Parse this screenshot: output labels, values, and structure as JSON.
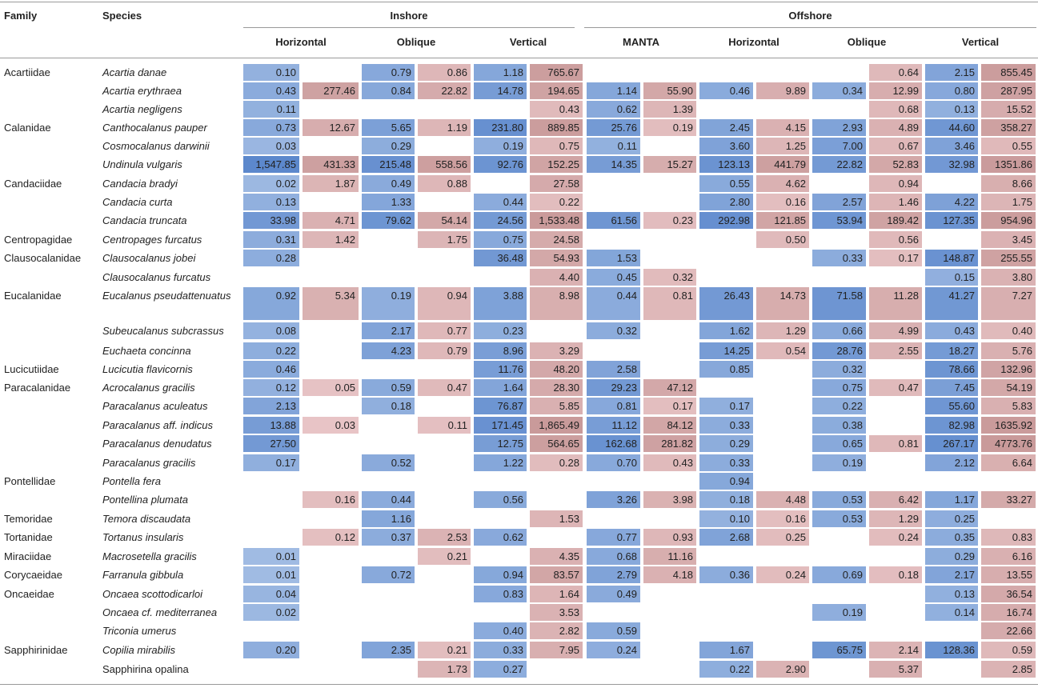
{
  "headers": {
    "family": "Family",
    "species": "Species",
    "inshore": "Inshore",
    "offshore": "Offshore",
    "sub": [
      "Horizontal",
      "Oblique",
      "Vertical",
      "MANTA",
      "Horizontal",
      "Oblique",
      "Vertical"
    ]
  },
  "colors": {
    "blue_max": "#5b87cc",
    "blue_min": "#c5d7ef",
    "red_max": "#c99a9a",
    "red_min": "#f3d4d6",
    "red_pink": "#f2a9b3"
  },
  "rows": [
    {
      "family": "Acartiidae",
      "species": "Acartia danae",
      "italic": true,
      "v": [
        "0.10",
        "",
        "0.79",
        "0.86",
        "1.18",
        "765.67",
        "",
        "",
        "",
        "",
        "",
        "0.64",
        "2.15",
        "855.45"
      ]
    },
    {
      "family": "",
      "species": "Acartia erythraea",
      "italic": true,
      "v": [
        "0.43",
        "277.46",
        "0.84",
        "22.82",
        "14.78",
        "194.65",
        "1.14",
        "55.90",
        "0.46",
        "9.89",
        "0.34",
        "12.99",
        "0.80",
        "287.95"
      ]
    },
    {
      "family": "",
      "species": "Acartia negligens",
      "italic": true,
      "v": [
        "0.11",
        "",
        "",
        "",
        "",
        "0.43",
        "0.62",
        "1.39",
        "",
        "",
        "",
        "0.68",
        "0.13",
        "15.52"
      ]
    },
    {
      "family": "Calanidae",
      "species": "Canthocalanus pauper",
      "italic": true,
      "v": [
        "0.73",
        "12.67",
        "5.65",
        "1.19",
        "231.80",
        "889.85",
        "25.76",
        "0.19",
        "2.45",
        "4.15",
        "2.93",
        "4.89",
        "44.60",
        "358.27"
      ]
    },
    {
      "family": "",
      "species": "Cosmocalanus darwinii",
      "italic": true,
      "v": [
        "0.03",
        "",
        "0.29",
        "",
        "0.19",
        "0.75",
        "0.11",
        "",
        "3.60",
        "1.25",
        "7.00",
        "0.67",
        "3.46",
        "0.55"
      ]
    },
    {
      "family": "",
      "species": "Undinula vulgaris",
      "italic": true,
      "v": [
        "1,547.85",
        "431.33",
        "215.48",
        "558.56",
        "92.76",
        "152.25",
        "14.35",
        "15.27",
        "123.13",
        "441.79",
        "22.82",
        "52.83",
        "32.98",
        "1351.86"
      ]
    },
    {
      "family": "Candaciidae",
      "species": "Candacia bradyi",
      "italic": true,
      "v": [
        "0.02",
        "1.87",
        "0.49",
        "0.88",
        "",
        "27.58",
        "",
        "",
        "0.55",
        "4.62",
        "",
        "0.94",
        "",
        "8.66"
      ]
    },
    {
      "family": "",
      "species": "Candacia curta",
      "italic": true,
      "v": [
        "0.13",
        "",
        "1.33",
        "",
        "0.44",
        "0.22",
        "",
        "",
        "2.80",
        "0.16",
        "2.57",
        "1.46",
        "4.22",
        "1.75"
      ]
    },
    {
      "family": "",
      "species": "Candacia truncata",
      "italic": true,
      "v": [
        "33.98",
        "4.71",
        "79.62",
        "54.14",
        "24.56",
        "1,533.48",
        "61.56",
        "0.23",
        "292.98",
        "121.85",
        "53.94",
        "189.42",
        "127.35",
        "954.96"
      ]
    },
    {
      "family": "Centropagidae",
      "species": "Centropages furcatus",
      "italic": true,
      "v": [
        "0.31",
        "1.42",
        "",
        "1.75",
        "0.75",
        "24.58",
        "",
        "",
        "",
        "0.50",
        "",
        "0.56",
        "",
        "3.45"
      ]
    },
    {
      "family": "Clausocalanidae",
      "species": "Clausocalanus jobei",
      "italic": true,
      "v": [
        "0.28",
        "",
        "",
        "",
        "36.48",
        "54.93",
        "1.53",
        "",
        "",
        "",
        "0.33",
        "0.17",
        "148.87",
        "255.55"
      ]
    },
    {
      "family": "",
      "species": "Clausocalanus furcatus",
      "italic": true,
      "v": [
        "",
        "",
        "",
        "",
        "",
        "4.40",
        "0.45",
        "0.32",
        "",
        "",
        "",
        "",
        "0.15",
        "3.80"
      ]
    },
    {
      "family": "Eucalanidae",
      "species": "Eucalanus pseudattenuatus",
      "italic": true,
      "tall": true,
      "v": [
        "0.92",
        "5.34",
        "0.19",
        "0.94",
        "3.88",
        "8.98",
        "0.44",
        "0.81",
        "26.43",
        "14.73",
        "71.58",
        "11.28",
        "41.27",
        "7.27"
      ]
    },
    {
      "family": "",
      "species": "Subeucalanus subcrassus",
      "italic": true,
      "v": [
        "0.08",
        "",
        "2.17",
        "0.77",
        "0.23",
        "",
        "0.32",
        "",
        "1.62",
        "1.29",
        "0.66",
        "4.99",
        "0.43",
        "0.40"
      ]
    },
    {
      "family": "",
      "species": "Euchaeta concinna",
      "italic": true,
      "v": [
        "0.22",
        "",
        "4.23",
        "0.79",
        "8.96",
        "3.29",
        "",
        "",
        "14.25",
        "0.54",
        "28.76",
        "2.55",
        "18.27",
        "5.76"
      ]
    },
    {
      "family": "Lucicutiidae",
      "species": "Lucicutia flavicornis",
      "italic": true,
      "v": [
        "0.46",
        "",
        "",
        "",
        "11.76",
        "48.20",
        "2.58",
        "",
        "0.85",
        "",
        "0.32",
        "",
        "78.66",
        "132.96"
      ]
    },
    {
      "family": "Paracalanidae",
      "species": "Acrocalanus gracilis",
      "italic": true,
      "v": [
        "0.12",
        "0.05",
        "0.59",
        "0.47",
        "1.64",
        "28.30",
        "29.23",
        "47.12",
        "",
        "",
        "0.75",
        "0.47",
        "7.45",
        "54.19"
      ]
    },
    {
      "family": "",
      "species": "Paracalanus aculeatus",
      "italic": true,
      "v": [
        "2.13",
        "",
        "0.18",
        "",
        "76.87",
        "5.85",
        "0.81",
        "0.17",
        "0.17",
        "",
        "0.22",
        "",
        "55.60",
        "5.83"
      ]
    },
    {
      "family": "",
      "species": "Paracalanus aff. indicus",
      "italic": true,
      "v": [
        "13.88",
        "0.03",
        "",
        "0.11",
        "171.45",
        "1,865.49",
        "11.12",
        "84.12",
        "0.33",
        "",
        "0.38",
        "",
        "82.98",
        "1635.92"
      ]
    },
    {
      "family": "",
      "species": "Paracalanus denudatus",
      "italic": true,
      "v": [
        "27.50",
        "",
        "",
        "",
        "12.75",
        "564.65",
        "162.68",
        "281.82",
        "0.29",
        "",
        "0.65",
        "0.81",
        "267.17",
        "4773.76"
      ]
    },
    {
      "family": "",
      "species": "Paracalanus gracilis",
      "italic": true,
      "v": [
        "0.17",
        "",
        "0.52",
        "",
        "1.22",
        "0.28",
        "0.70",
        "0.43",
        "0.33",
        "",
        "0.19",
        "",
        "2.12",
        "6.64"
      ]
    },
    {
      "family": "Pontellidae",
      "species": "Pontella fera",
      "italic": true,
      "v": [
        "",
        "",
        "",
        "",
        "",
        "",
        "",
        "",
        "0.94",
        "",
        "",
        "",
        "",
        ""
      ]
    },
    {
      "family": "",
      "species": "Pontellina plumata",
      "italic": true,
      "v": [
        "",
        "0.16",
        "0.44",
        "",
        "0.56",
        "",
        "3.26",
        "3.98",
        "0.18",
        "4.48",
        "0.53",
        "6.42",
        "1.17",
        "33.27"
      ]
    },
    {
      "family": "Temoridae",
      "species": "Temora discaudata",
      "italic": true,
      "v": [
        "",
        "",
        "1.16",
        "",
        "",
        "1.53",
        "",
        "",
        "0.10",
        "0.16",
        "0.53",
        "1.29",
        "0.25",
        ""
      ]
    },
    {
      "family": "Tortanidae",
      "species": "Tortanus insularis",
      "italic": true,
      "v": [
        "",
        "0.12",
        "0.37",
        "2.53",
        "0.62",
        "",
        "0.77",
        "0.93",
        "2.68",
        "0.25",
        "",
        "0.24",
        "0.35",
        "0.83"
      ]
    },
    {
      "family": "Miraciidae",
      "species": "Macrosetella gracilis",
      "italic": true,
      "v": [
        "0.01",
        "",
        "",
        "0.21",
        "",
        "4.35",
        "0.68",
        "11.16",
        "",
        "",
        "",
        "",
        "0.29",
        "6.16"
      ]
    },
    {
      "family": "Corycaeidae",
      "species": "Farranula gibbula",
      "italic": true,
      "v": [
        "0.01",
        "",
        "0.72",
        "",
        "0.94",
        "83.57",
        "2.79",
        "4.18",
        "0.36",
        "0.24",
        "0.69",
        "0.18",
        "2.17",
        "13.55"
      ]
    },
    {
      "family": "Oncaeidae",
      "species": "Oncaea scottodicarloi",
      "italic": true,
      "v": [
        "0.04",
        "",
        "",
        "",
        "0.83",
        "1.64",
        "0.49",
        "",
        "",
        "",
        "",
        "",
        "0.13",
        "36.54"
      ]
    },
    {
      "family": "",
      "species": "Oncaea cf. mediterranea",
      "italic": true,
      "v": [
        "0.02",
        "",
        "",
        "",
        "",
        "3.53",
        "",
        "",
        "",
        "",
        "0.19",
        "",
        "0.14",
        "16.74"
      ]
    },
    {
      "family": "",
      "species": "Triconia umerus",
      "italic": true,
      "v": [
        "",
        "",
        "",
        "",
        "0.40",
        "2.82",
        "0.59",
        "",
        "",
        "",
        "",
        "",
        "",
        "22.66"
      ]
    },
    {
      "family": "Sapphirinidae",
      "species": "Copilia mirabilis",
      "italic": true,
      "v": [
        "0.20",
        "",
        "2.35",
        "0.21",
        "0.33",
        "7.95",
        "0.24",
        "",
        "1.67",
        "",
        "65.75",
        "2.14",
        "128.36",
        "0.59"
      ]
    },
    {
      "family": "",
      "species": "Sapphirina opalina",
      "italic": false,
      "v": [
        "",
        "",
        "",
        "1.73",
        "0.27",
        "",
        "",
        "",
        "0.22",
        "2.90",
        "",
        "5.37",
        "",
        "2.85"
      ]
    }
  ]
}
